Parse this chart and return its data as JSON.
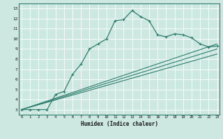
{
  "xlabel": "Humidex (Indice chaleur)",
  "bg_color": "#cde8e0",
  "line_color": "#2e7d6e",
  "grid_color": "#ffffff",
  "x_ticks": [
    0,
    1,
    2,
    3,
    4,
    5,
    6,
    7,
    8,
    9,
    10,
    11,
    12,
    13,
    14,
    15,
    16,
    17,
    18,
    19,
    20,
    21,
    22,
    23
  ],
  "y_ticks": [
    3,
    4,
    5,
    6,
    7,
    8,
    9,
    10,
    11,
    12,
    13
  ],
  "xlim": [
    -0.3,
    23.3
  ],
  "ylim": [
    2.5,
    13.5
  ],
  "series1_x": [
    0,
    1,
    2,
    3,
    4,
    5,
    6,
    7,
    8,
    9,
    10,
    11,
    12,
    13,
    14,
    15,
    16,
    17,
    18,
    19,
    20,
    21,
    22,
    23
  ],
  "series1_y": [
    3.0,
    3.0,
    3.0,
    3.0,
    4.5,
    4.8,
    6.5,
    7.5,
    9.0,
    9.5,
    10.0,
    11.8,
    11.9,
    12.8,
    12.2,
    11.8,
    10.4,
    10.2,
    10.5,
    10.4,
    10.1,
    9.5,
    9.2,
    9.3
  ],
  "series2_x": [
    0,
    23
  ],
  "series2_y": [
    3.0,
    9.5
  ],
  "series3_x": [
    0,
    23
  ],
  "series3_y": [
    3.0,
    8.5
  ],
  "series4_x": [
    0,
    23
  ],
  "series4_y": [
    3.0,
    9.0
  ]
}
